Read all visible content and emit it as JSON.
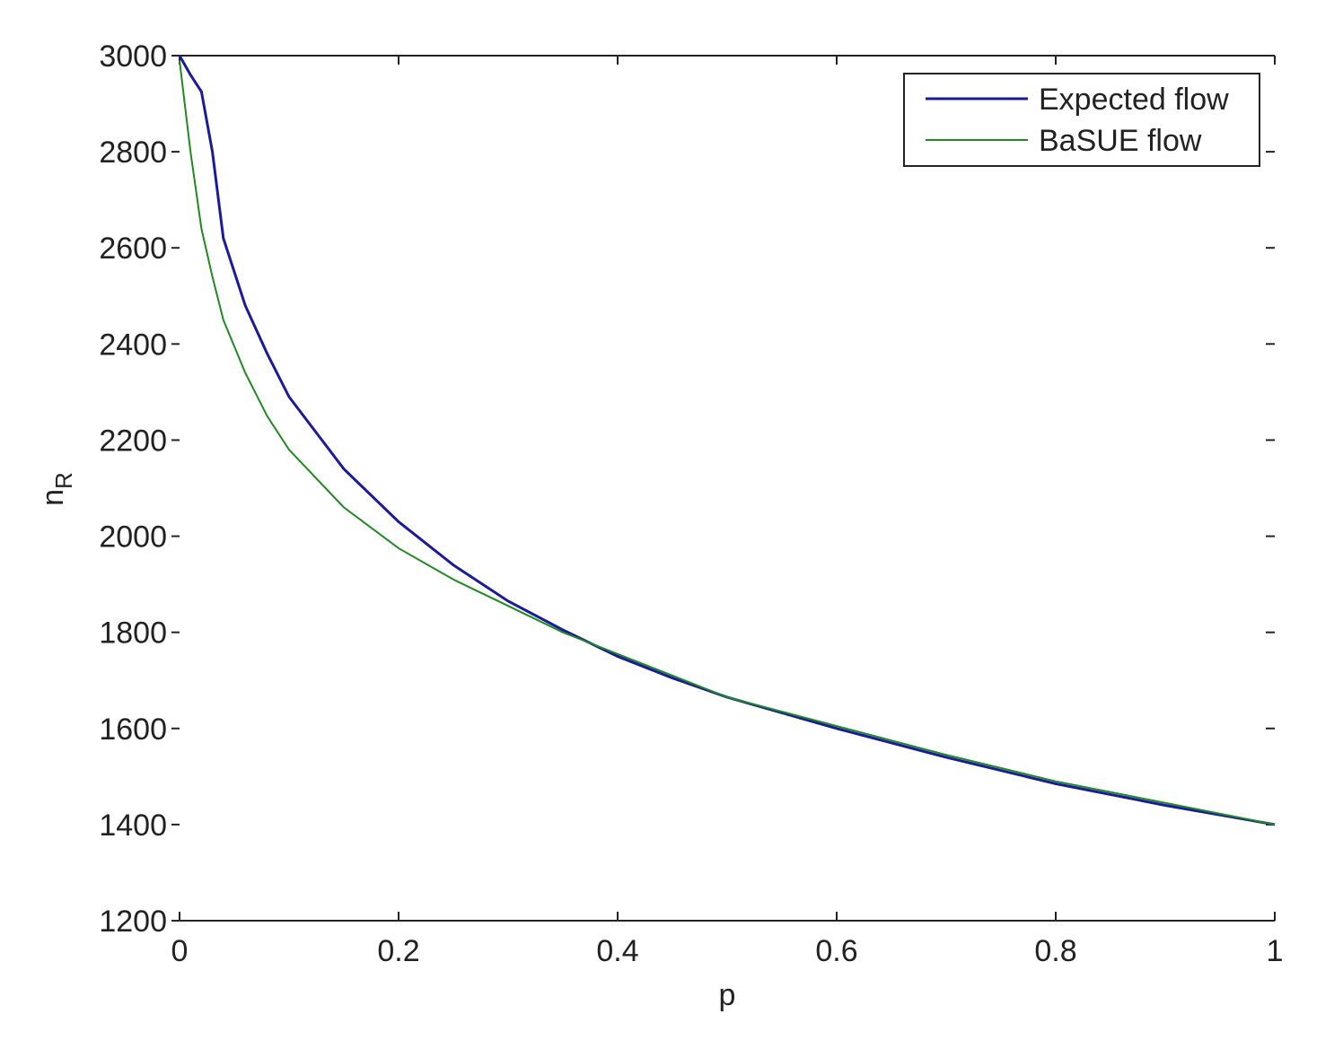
{
  "chart_data": {
    "type": "line",
    "xlabel": "p",
    "ylabel": "n",
    "ylabel_sub": "R",
    "x": [
      0,
      0.01,
      0.02,
      0.03,
      0.04,
      0.06,
      0.08,
      0.1,
      0.15,
      0.2,
      0.25,
      0.3,
      0.35,
      0.4,
      0.45,
      0.5,
      0.6,
      0.7,
      0.8,
      0.9,
      1.0
    ],
    "series": [
      {
        "name": "Expected flow",
        "color": "#1a1a9c",
        "width": 3,
        "values": [
          3000,
          2960,
          2925,
          2800,
          2620,
          2480,
          2380,
          2290,
          2140,
          2030,
          1940,
          1865,
          1805,
          1750,
          1705,
          1665,
          1600,
          1540,
          1485,
          1440,
          1400
        ]
      },
      {
        "name": "BaSUE flow",
        "color": "#1f8a1f",
        "width": 2,
        "values": [
          2990,
          2800,
          2640,
          2540,
          2450,
          2340,
          2250,
          2180,
          2060,
          1975,
          1910,
          1855,
          1800,
          1755,
          1710,
          1665,
          1605,
          1545,
          1490,
          1445,
          1400
        ]
      }
    ],
    "xlim": [
      0,
      1
    ],
    "xticks": [
      0,
      0.2,
      0.4,
      0.6,
      0.8,
      1
    ],
    "ylim": [
      1200,
      3000
    ],
    "yticks": [
      1200,
      1400,
      1600,
      1800,
      2000,
      2200,
      2400,
      2600,
      2800,
      3000
    ],
    "legend": "top-right"
  }
}
